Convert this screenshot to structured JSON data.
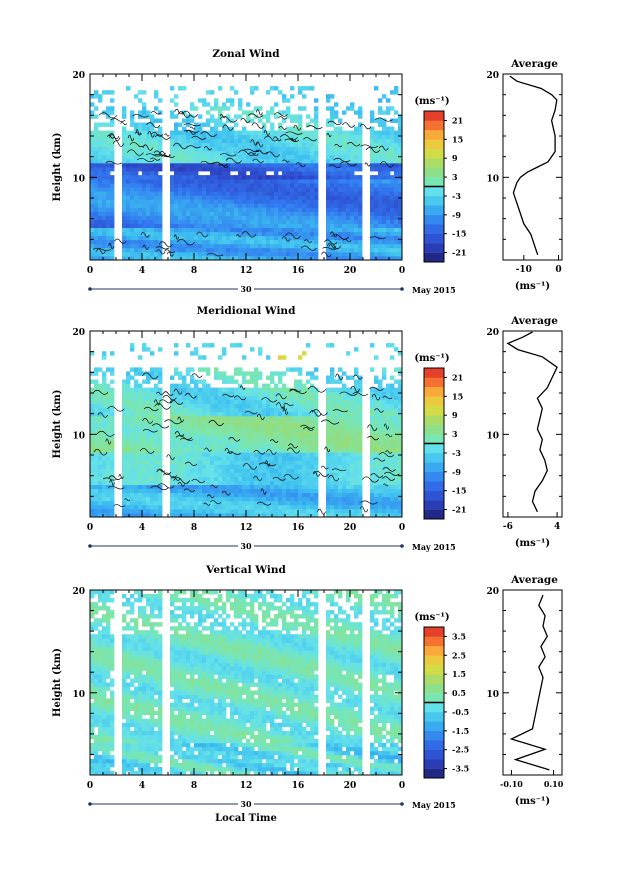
{
  "chart_data": [
    {
      "type": "heatmap",
      "title": "Zonal Wind",
      "ylabel": "Height (km)",
      "ylim": [
        2,
        20
      ],
      "yticks": [
        "10",
        "20"
      ],
      "xlim": [
        0,
        24
      ],
      "xticks": [
        "0",
        "4",
        "8",
        "12",
        "16",
        "20",
        "0"
      ],
      "date_day": "30",
      "date_month": "May 2015",
      "colorbar_unit": "(ms⁻¹)",
      "colorbar_ticks": [
        "21",
        "15",
        "9",
        "3",
        "-3",
        "-9",
        "-15",
        "-21"
      ],
      "colorbar_range": [
        -24,
        24
      ],
      "profile": {
        "title": "Average",
        "xlabel": "(ms⁻¹)",
        "xticks": [
          "-10",
          "0"
        ],
        "xlim": [
          -16,
          1
        ],
        "points": [
          [
            -6,
            2.5
          ],
          [
            -7,
            3.5
          ],
          [
            -8,
            4.5
          ],
          [
            -10,
            5.5
          ],
          [
            -11,
            6.5
          ],
          [
            -12,
            7.5
          ],
          [
            -13,
            8.5
          ],
          [
            -12,
            9.5
          ],
          [
            -11,
            10
          ],
          [
            -9,
            10.5
          ],
          [
            -6,
            11
          ],
          [
            -3,
            11.5
          ],
          [
            -1,
            12.5
          ],
          [
            -1,
            14
          ],
          [
            -2,
            15.5
          ],
          [
            -1,
            16.5
          ],
          [
            -0.5,
            17.5
          ],
          [
            -2,
            18
          ],
          [
            -5,
            18.6
          ],
          [
            -12,
            19.3
          ],
          [
            -14,
            19.8
          ]
        ]
      }
    },
    {
      "type": "heatmap",
      "title": "Meridional Wind",
      "ylabel": "Height (km)",
      "ylim": [
        2,
        20
      ],
      "yticks": [
        "10",
        "20"
      ],
      "xlim": [
        0,
        24
      ],
      "xticks": [
        "0",
        "4",
        "8",
        "12",
        "16",
        "20",
        "0"
      ],
      "date_day": "30",
      "date_month": "May 2015",
      "colorbar_unit": "(ms⁻¹)",
      "colorbar_ticks": [
        "21",
        "15",
        "9",
        "3",
        "-3",
        "-9",
        "-15",
        "-21"
      ],
      "colorbar_range": [
        -24,
        24
      ],
      "profile": {
        "title": "Average",
        "xlabel": "(ms⁻¹)",
        "xticks": [
          "-6",
          "4"
        ],
        "xlim": [
          -7,
          5
        ],
        "points": [
          [
            0,
            2.5
          ],
          [
            -1,
            3.5
          ],
          [
            -0.5,
            4.5
          ],
          [
            1,
            5.5
          ],
          [
            2,
            6.5
          ],
          [
            1.5,
            7.5
          ],
          [
            0.5,
            8.5
          ],
          [
            1,
            9.5
          ],
          [
            0,
            10.5
          ],
          [
            0.5,
            11.5
          ],
          [
            1,
            12.5
          ],
          [
            0,
            13.5
          ],
          [
            2,
            14.5
          ],
          [
            3,
            15.5
          ],
          [
            4,
            16.5
          ],
          [
            1,
            17.5
          ],
          [
            -4,
            18.2
          ],
          [
            -6,
            18.8
          ],
          [
            -3,
            19.4
          ],
          [
            -1,
            19.9
          ]
        ]
      }
    },
    {
      "type": "heatmap",
      "title": "Vertical Wind",
      "ylabel": "Height (km)",
      "ylim": [
        2,
        20
      ],
      "yticks": [
        "10",
        "20"
      ],
      "xlim": [
        0,
        24
      ],
      "xticks": [
        "0",
        "4",
        "8",
        "12",
        "16",
        "20",
        "0"
      ],
      "xlabel": "Local Time",
      "date_day": "30",
      "date_month": "May 2015",
      "colorbar_unit": "(ms⁻¹)",
      "colorbar_ticks": [
        "3.5",
        "2.5",
        "1.5",
        "0.5",
        "-0.5",
        "-1.5",
        "-2.5",
        "-3.5"
      ],
      "colorbar_range": [
        -4,
        4
      ],
      "profile": {
        "title": "Average",
        "xlabel": "(ms⁻¹)",
        "xticks": [
          "-0.10",
          "0.10"
        ],
        "xlim": [
          -0.14,
          0.14
        ],
        "points": [
          [
            0.08,
            2.5
          ],
          [
            -0.08,
            3.5
          ],
          [
            0.06,
            4.5
          ],
          [
            -0.1,
            5.5
          ],
          [
            0.0,
            6.5
          ],
          [
            0.01,
            7.5
          ],
          [
            0.02,
            8.5
          ],
          [
            0.03,
            9.5
          ],
          [
            0.04,
            10.5
          ],
          [
            0.05,
            11.5
          ],
          [
            0.03,
            12.5
          ],
          [
            0.06,
            13.5
          ],
          [
            0.04,
            14.5
          ],
          [
            0.07,
            15.5
          ],
          [
            0.05,
            16.5
          ],
          [
            0.06,
            17.5
          ],
          [
            0.03,
            18.5
          ],
          [
            0.05,
            19.5
          ]
        ]
      }
    }
  ]
}
